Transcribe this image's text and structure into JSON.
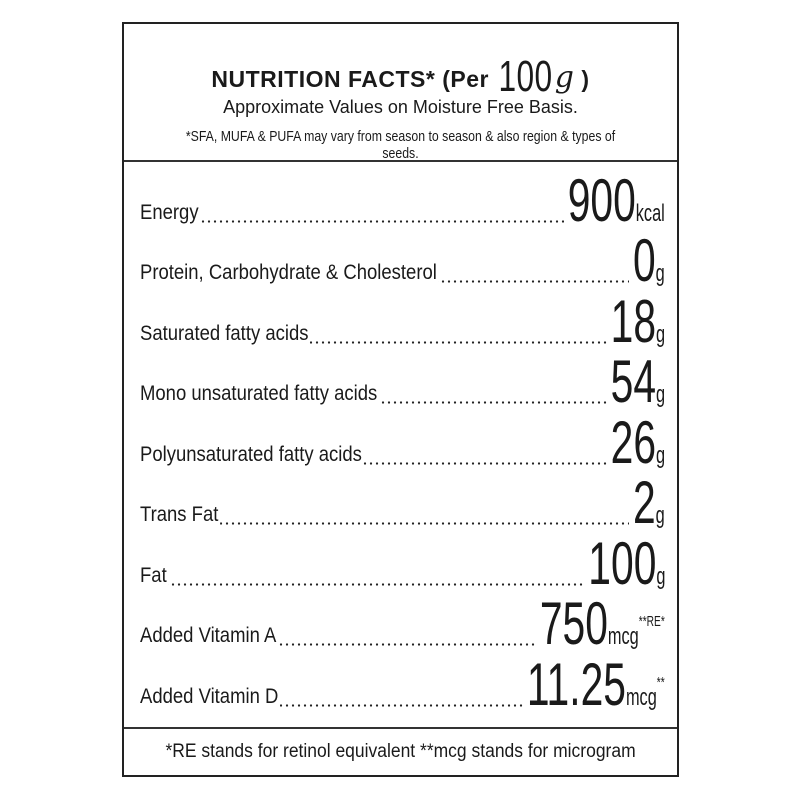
{
  "header": {
    "title": "NUTRITION FACTS* (Per",
    "title_qty": "100",
    "title_unit": "g",
    "title_close": ")",
    "subtitle": "Approximate Values on Moisture Free Basis.",
    "note": "*SFA, MUFA & PUFA may vary from season to season & also region & types of seeds."
  },
  "rows": [
    {
      "label": "Energy",
      "value": "900",
      "unit": "kcal",
      "sup": ""
    },
    {
      "label": "Protein, Carbohydrate & Cholesterol",
      "value": "0",
      "unit": "g",
      "sup": ""
    },
    {
      "label": "Saturated fatty acids",
      "value": "18",
      "unit": "g",
      "sup": ""
    },
    {
      "label": "Mono unsaturated fatty acids",
      "value": "54",
      "unit": "g",
      "sup": ""
    },
    {
      "label": "Polyunsaturated fatty acids",
      "value": "26",
      "unit": "g",
      "sup": ""
    },
    {
      "label": "Trans Fat",
      "value": "2",
      "unit": "g",
      "sup": ""
    },
    {
      "label": "Fat",
      "value": "100",
      "unit": "g",
      "sup": ""
    },
    {
      "label": "Added Vitamin A",
      "value": "750",
      "unit": "mcg",
      "sup": "**RE*"
    },
    {
      "label": "Added Vitamin D",
      "value": "11.25",
      "unit": "mcg",
      "sup": "**"
    }
  ],
  "footer": "*RE stands for retinol equivalent **mcg stands for microgram"
}
